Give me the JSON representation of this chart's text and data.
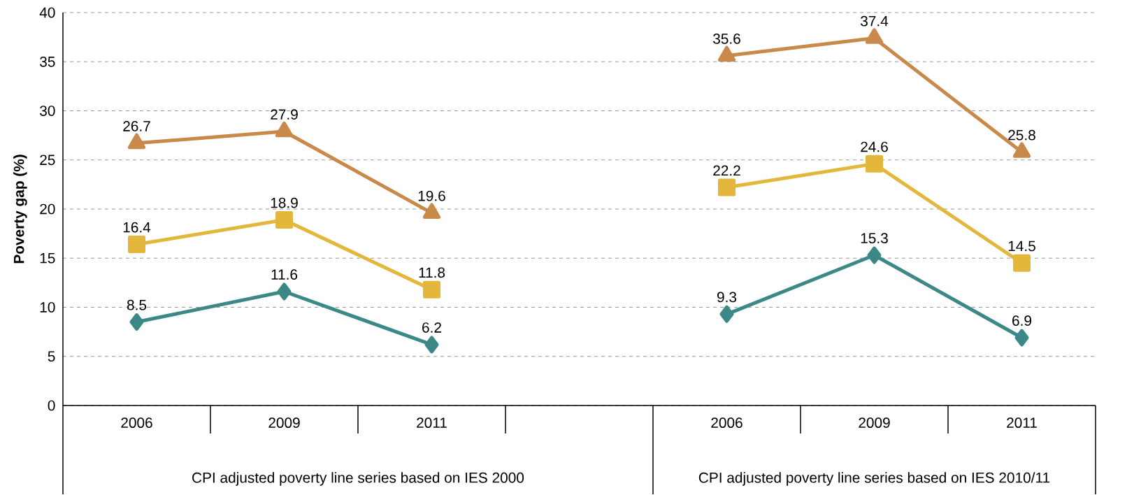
{
  "chart_data": {
    "type": "line",
    "ylabel": "Poverty gap (%)",
    "categories": [
      "2006",
      "2009",
      "2011",
      null,
      "2006",
      "2009",
      "2011"
    ],
    "series": [
      {
        "color": "#c8894a",
        "marker": "triangle",
        "values": [
          26.7,
          27.9,
          19.6,
          null,
          35.6,
          37.4,
          25.8
        ]
      },
      {
        "color": "#e2b73c",
        "marker": "square",
        "values": [
          16.4,
          18.9,
          11.8,
          null,
          22.2,
          24.6,
          14.5
        ]
      },
      {
        "color": "#3b8886",
        "marker": "diamond",
        "values": [
          8.5,
          11.6,
          6.2,
          null,
          9.3,
          15.3,
          6.9
        ]
      }
    ],
    "ylim": [
      0,
      40
    ],
    "yticks": [
      0,
      5,
      10,
      15,
      20,
      25,
      30,
      35,
      40
    ],
    "grid": "y",
    "data_labels": true,
    "annotations": [
      "CPI adjusted poverty line series based on IES 2000",
      "CPI adjusted poverty line series based on IES 2010/11"
    ]
  }
}
